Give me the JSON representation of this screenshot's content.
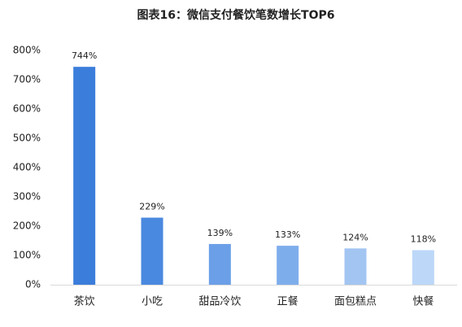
{
  "chart_data": {
    "type": "bar",
    "title": "图表16：微信支付餐饮笔数增长TOP6",
    "categories": [
      "茶饮",
      "小吃",
      "甜品冷饮",
      "正餐",
      "面包糕点",
      "快餐"
    ],
    "values": [
      744,
      229,
      139,
      133,
      124,
      118
    ],
    "value_labels": [
      "744%",
      "229%",
      "139%",
      "133%",
      "124%",
      "118%"
    ],
    "colors": [
      "#3b7ddb",
      "#4a89e0",
      "#6b9fe8",
      "#7eadec",
      "#a3c5f2",
      "#bcd7f8"
    ],
    "ylim": [
      0,
      800
    ],
    "yticks": [
      {
        "value": 0,
        "label": "0%"
      },
      {
        "value": 100,
        "label": "100%"
      },
      {
        "value": 200,
        "label": "200%"
      },
      {
        "value": 300,
        "label": "300%"
      },
      {
        "value": 400,
        "label": "400%"
      },
      {
        "value": 500,
        "label": "500%"
      },
      {
        "value": 600,
        "label": "600%"
      },
      {
        "value": 700,
        "label": "700%"
      },
      {
        "value": 800,
        "label": "800%"
      }
    ],
    "grid": false
  }
}
